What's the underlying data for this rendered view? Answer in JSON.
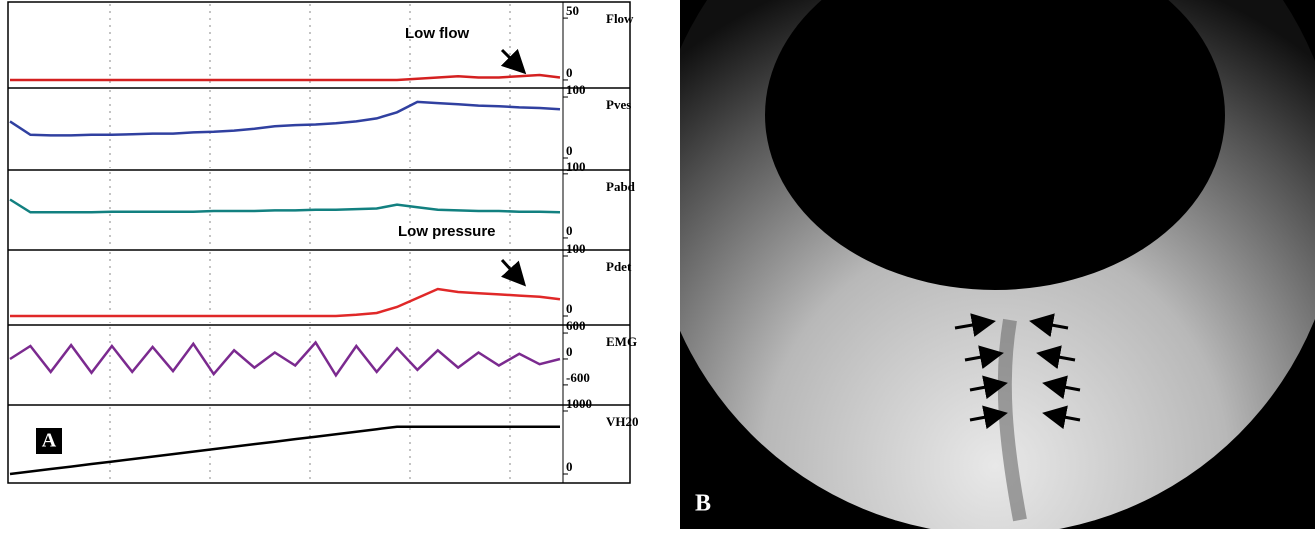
{
  "panels": {
    "a_label": "A",
    "b_label": "B"
  },
  "chart_data": [
    {
      "type": "line",
      "title": "Flow",
      "color": "#d42020",
      "ylim": [
        -6.5,
        63
      ],
      "yticks": [
        50,
        0
      ],
      "grid": true,
      "annotation": "Low flow",
      "values": [
        0,
        0,
        0,
        0,
        0,
        0,
        0,
        0,
        0,
        0,
        0,
        0,
        0,
        0,
        0,
        0,
        0,
        0,
        0,
        0,
        1,
        2,
        3,
        2,
        2,
        3,
        4,
        2
      ]
    },
    {
      "type": "line",
      "title": "Pves",
      "color": "#3040a0",
      "ylim": [
        -19.7,
        114.8
      ],
      "yticks": [
        100,
        0
      ],
      "grid": true,
      "values": [
        60,
        38,
        37,
        37,
        38,
        38,
        39,
        40,
        40,
        42,
        43,
        45,
        48,
        52,
        54,
        55,
        57,
        60,
        65,
        75,
        92,
        90,
        88,
        86,
        85,
        83,
        82,
        80
      ]
    },
    {
      "type": "line",
      "title": "Pabd",
      "color": "#128080",
      "ylim": [
        -18.8,
        106
      ],
      "yticks": [
        100,
        0
      ],
      "grid": true,
      "values": [
        60,
        40,
        40,
        40,
        40,
        41,
        41,
        41,
        41,
        41,
        42,
        42,
        42,
        43,
        43,
        44,
        44,
        45,
        46,
        52,
        48,
        44,
        43,
        42,
        42,
        41,
        41,
        40
      ]
    },
    {
      "type": "line",
      "title": "Pdet",
      "color": "#e02828",
      "ylim": [
        -15,
        110
      ],
      "yticks": [
        100,
        0
      ],
      "grid": true,
      "annotation": "Low pressure",
      "values": [
        0,
        0,
        0,
        0,
        0,
        0,
        0,
        0,
        0,
        0,
        0,
        0,
        0,
        0,
        0,
        0,
        0,
        2,
        5,
        15,
        30,
        45,
        40,
        38,
        36,
        34,
        32,
        28
      ]
    },
    {
      "type": "line",
      "title": "EMG",
      "color": "#7b2a8f",
      "ylim": [
        -1065,
        786
      ],
      "yticks": [
        600,
        0,
        -600
      ],
      "grid": true,
      "values": [
        0,
        300,
        -300,
        320,
        -320,
        300,
        -300,
        280,
        -280,
        350,
        -350,
        200,
        -200,
        150,
        -150,
        380,
        -380,
        300,
        -300,
        250,
        -250,
        200,
        -200,
        150,
        -150,
        120,
        -120,
        0
      ]
    },
    {
      "type": "line",
      "title": "VH20",
      "color": "#000000",
      "ylim": [
        -143,
        1095
      ],
      "yticks": [
        1000,
        0
      ],
      "grid": true,
      "values": [
        0,
        39,
        79,
        118,
        158,
        197,
        237,
        276,
        316,
        355,
        395,
        434,
        474,
        513,
        553,
        592,
        632,
        671,
        711,
        750,
        750,
        750,
        750,
        750,
        750,
        750,
        750,
        750
      ]
    }
  ]
}
